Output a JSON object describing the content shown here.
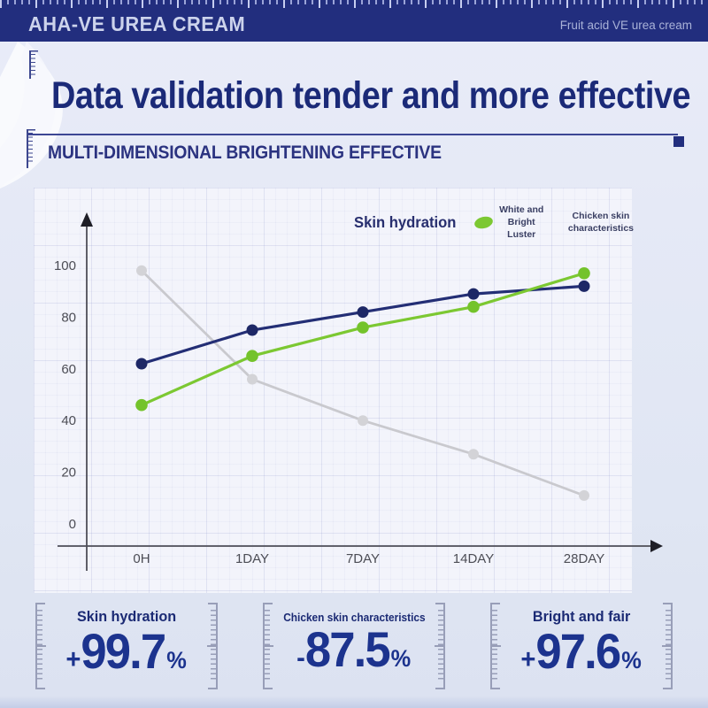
{
  "header": {
    "brand": "AHA-VE UREA CREAM",
    "tagline": "Fruit acid VE urea cream"
  },
  "hero": {
    "title": "Data validation tender and more effective",
    "subtitle": "MULTI-DIMENSIONAL BRIGHTENING EFFECTIVE"
  },
  "colors": {
    "accent_navy": "#222e7e",
    "line_navy": "#232e75",
    "line_green": "#7cc832",
    "line_gray": "#c9c9ce"
  },
  "chart_data": {
    "type": "line",
    "categories": [
      "0H",
      "1DAY",
      "7DAY",
      "14DAY",
      "28DAY"
    ],
    "series": [
      {
        "name": "Skin hydration",
        "color": "#232e75",
        "marker_color": "#1d2766",
        "values": [
          62,
          75,
          82,
          89,
          92
        ]
      },
      {
        "name": "White and Bright Luster",
        "color": "#7cc832",
        "marker_color": "#74c32b",
        "values": [
          46,
          65,
          76,
          84,
          97
        ]
      },
      {
        "name": "Chicken skin characteristics",
        "color": "#c9c9ce",
        "marker_color": "#d3d3d7",
        "values": [
          98,
          56,
          40,
          27,
          11
        ]
      }
    ],
    "yticks": [
      0,
      20,
      40,
      60,
      80,
      100
    ],
    "ylim": [
      0,
      112
    ],
    "grid": true,
    "legend_position": "top-right",
    "title": "",
    "xlabel": "",
    "ylabel": ""
  },
  "stats": [
    {
      "label": "Skin hydration",
      "sign": "+",
      "value": "99.7",
      "unit": "%"
    },
    {
      "label": "Chicken skin characteristics",
      "sign": "-",
      "value": "87.5",
      "unit": "%"
    },
    {
      "label": "Bright and fair",
      "sign": "+",
      "value": "97.6",
      "unit": "%"
    }
  ]
}
